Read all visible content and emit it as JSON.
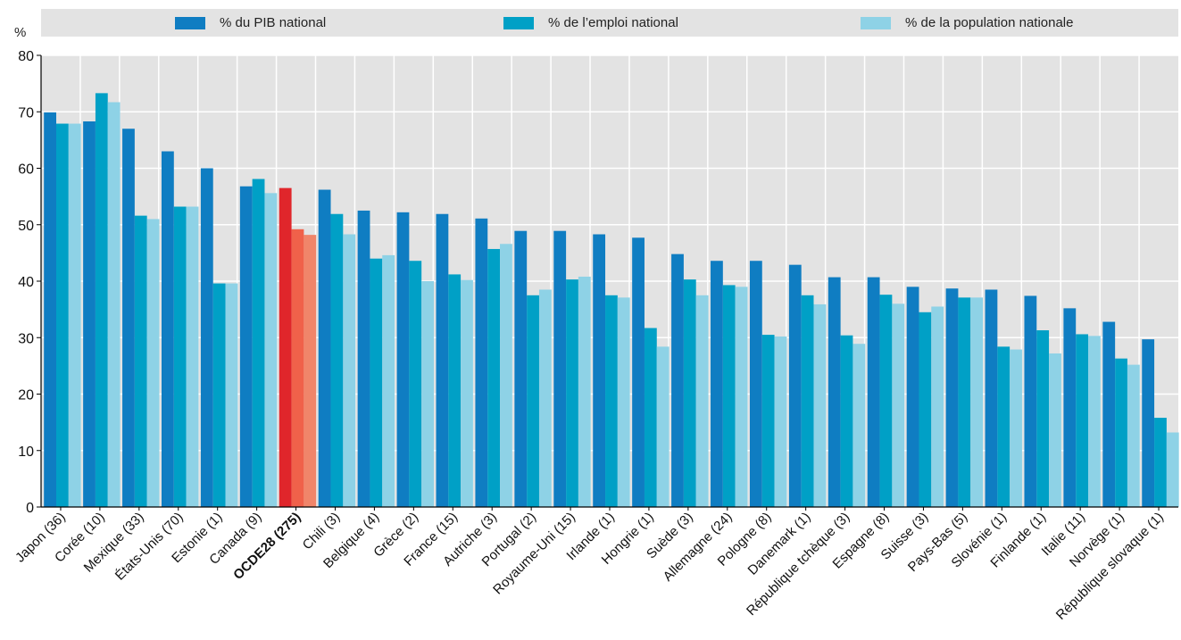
{
  "chart_data": {
    "type": "bar",
    "unit_label": "%",
    "ylim": [
      0,
      80
    ],
    "yticks": [
      0,
      10,
      20,
      30,
      40,
      50,
      60,
      70,
      80
    ],
    "grid": true,
    "legend_position": "top",
    "categories": [
      "Japon (36)",
      "Corée (10)",
      "Mexique (33)",
      "États-Unis (70)",
      "Estonie (1)",
      "Canada (9)",
      "OCDE28 (275)",
      "Chili (3)",
      "Belgique (4)",
      "Grèce (2)",
      "France (15)",
      "Autriche (3)",
      "Portugal (2)",
      "Royaume-Uni (15)",
      "Irlande (1)",
      "Hongrie (1)",
      "Suède (3)",
      "Allemagne (24)",
      "Pologne (8)",
      "Danemark (1)",
      "République tchèque (3)",
      "Espagne (8)",
      "Suisse (3)",
      "Pays-Bas (5)",
      "Slovénie (1)",
      "Finlande (1)",
      "Italie (11)",
      "Norvège (1)",
      "République slovaque (1)"
    ],
    "highlight_category": "OCDE28 (275)",
    "series": [
      {
        "name": "% du PIB national",
        "color": "#0f7dc2",
        "highlight_color": "#e0262b",
        "values": [
          69.9,
          68.3,
          67.0,
          63.0,
          60.0,
          56.8,
          56.5,
          56.2,
          52.5,
          52.2,
          51.9,
          51.1,
          48.9,
          48.9,
          48.3,
          47.7,
          44.8,
          43.6,
          43.6,
          42.9,
          40.7,
          40.7,
          39.0,
          38.7,
          38.5,
          37.4,
          35.2,
          32.8,
          29.7
        ]
      },
      {
        "name": "% de l’emploi national",
        "color": "#00a0c6",
        "highlight_color": "#f0614a",
        "values": [
          67.9,
          73.3,
          51.6,
          53.2,
          39.6,
          58.1,
          49.2,
          51.9,
          44.0,
          43.6,
          41.2,
          45.7,
          37.5,
          40.3,
          37.5,
          31.7,
          40.3,
          39.3,
          30.5,
          37.5,
          30.4,
          37.6,
          34.5,
          37.1,
          28.4,
          31.3,
          30.6,
          26.3,
          15.8
        ]
      },
      {
        "name": "% de la population nationale",
        "color": "#8ed2e6",
        "highlight_color": "#f0856a",
        "values": [
          67.9,
          71.7,
          51.0,
          53.2,
          39.6,
          55.6,
          48.2,
          48.3,
          44.6,
          40.0,
          40.2,
          46.6,
          38.5,
          40.8,
          37.1,
          28.4,
          37.5,
          39.0,
          30.2,
          35.9,
          28.9,
          36.0,
          35.5,
          37.1,
          27.9,
          27.2,
          30.3,
          25.2,
          13.2
        ]
      }
    ]
  }
}
